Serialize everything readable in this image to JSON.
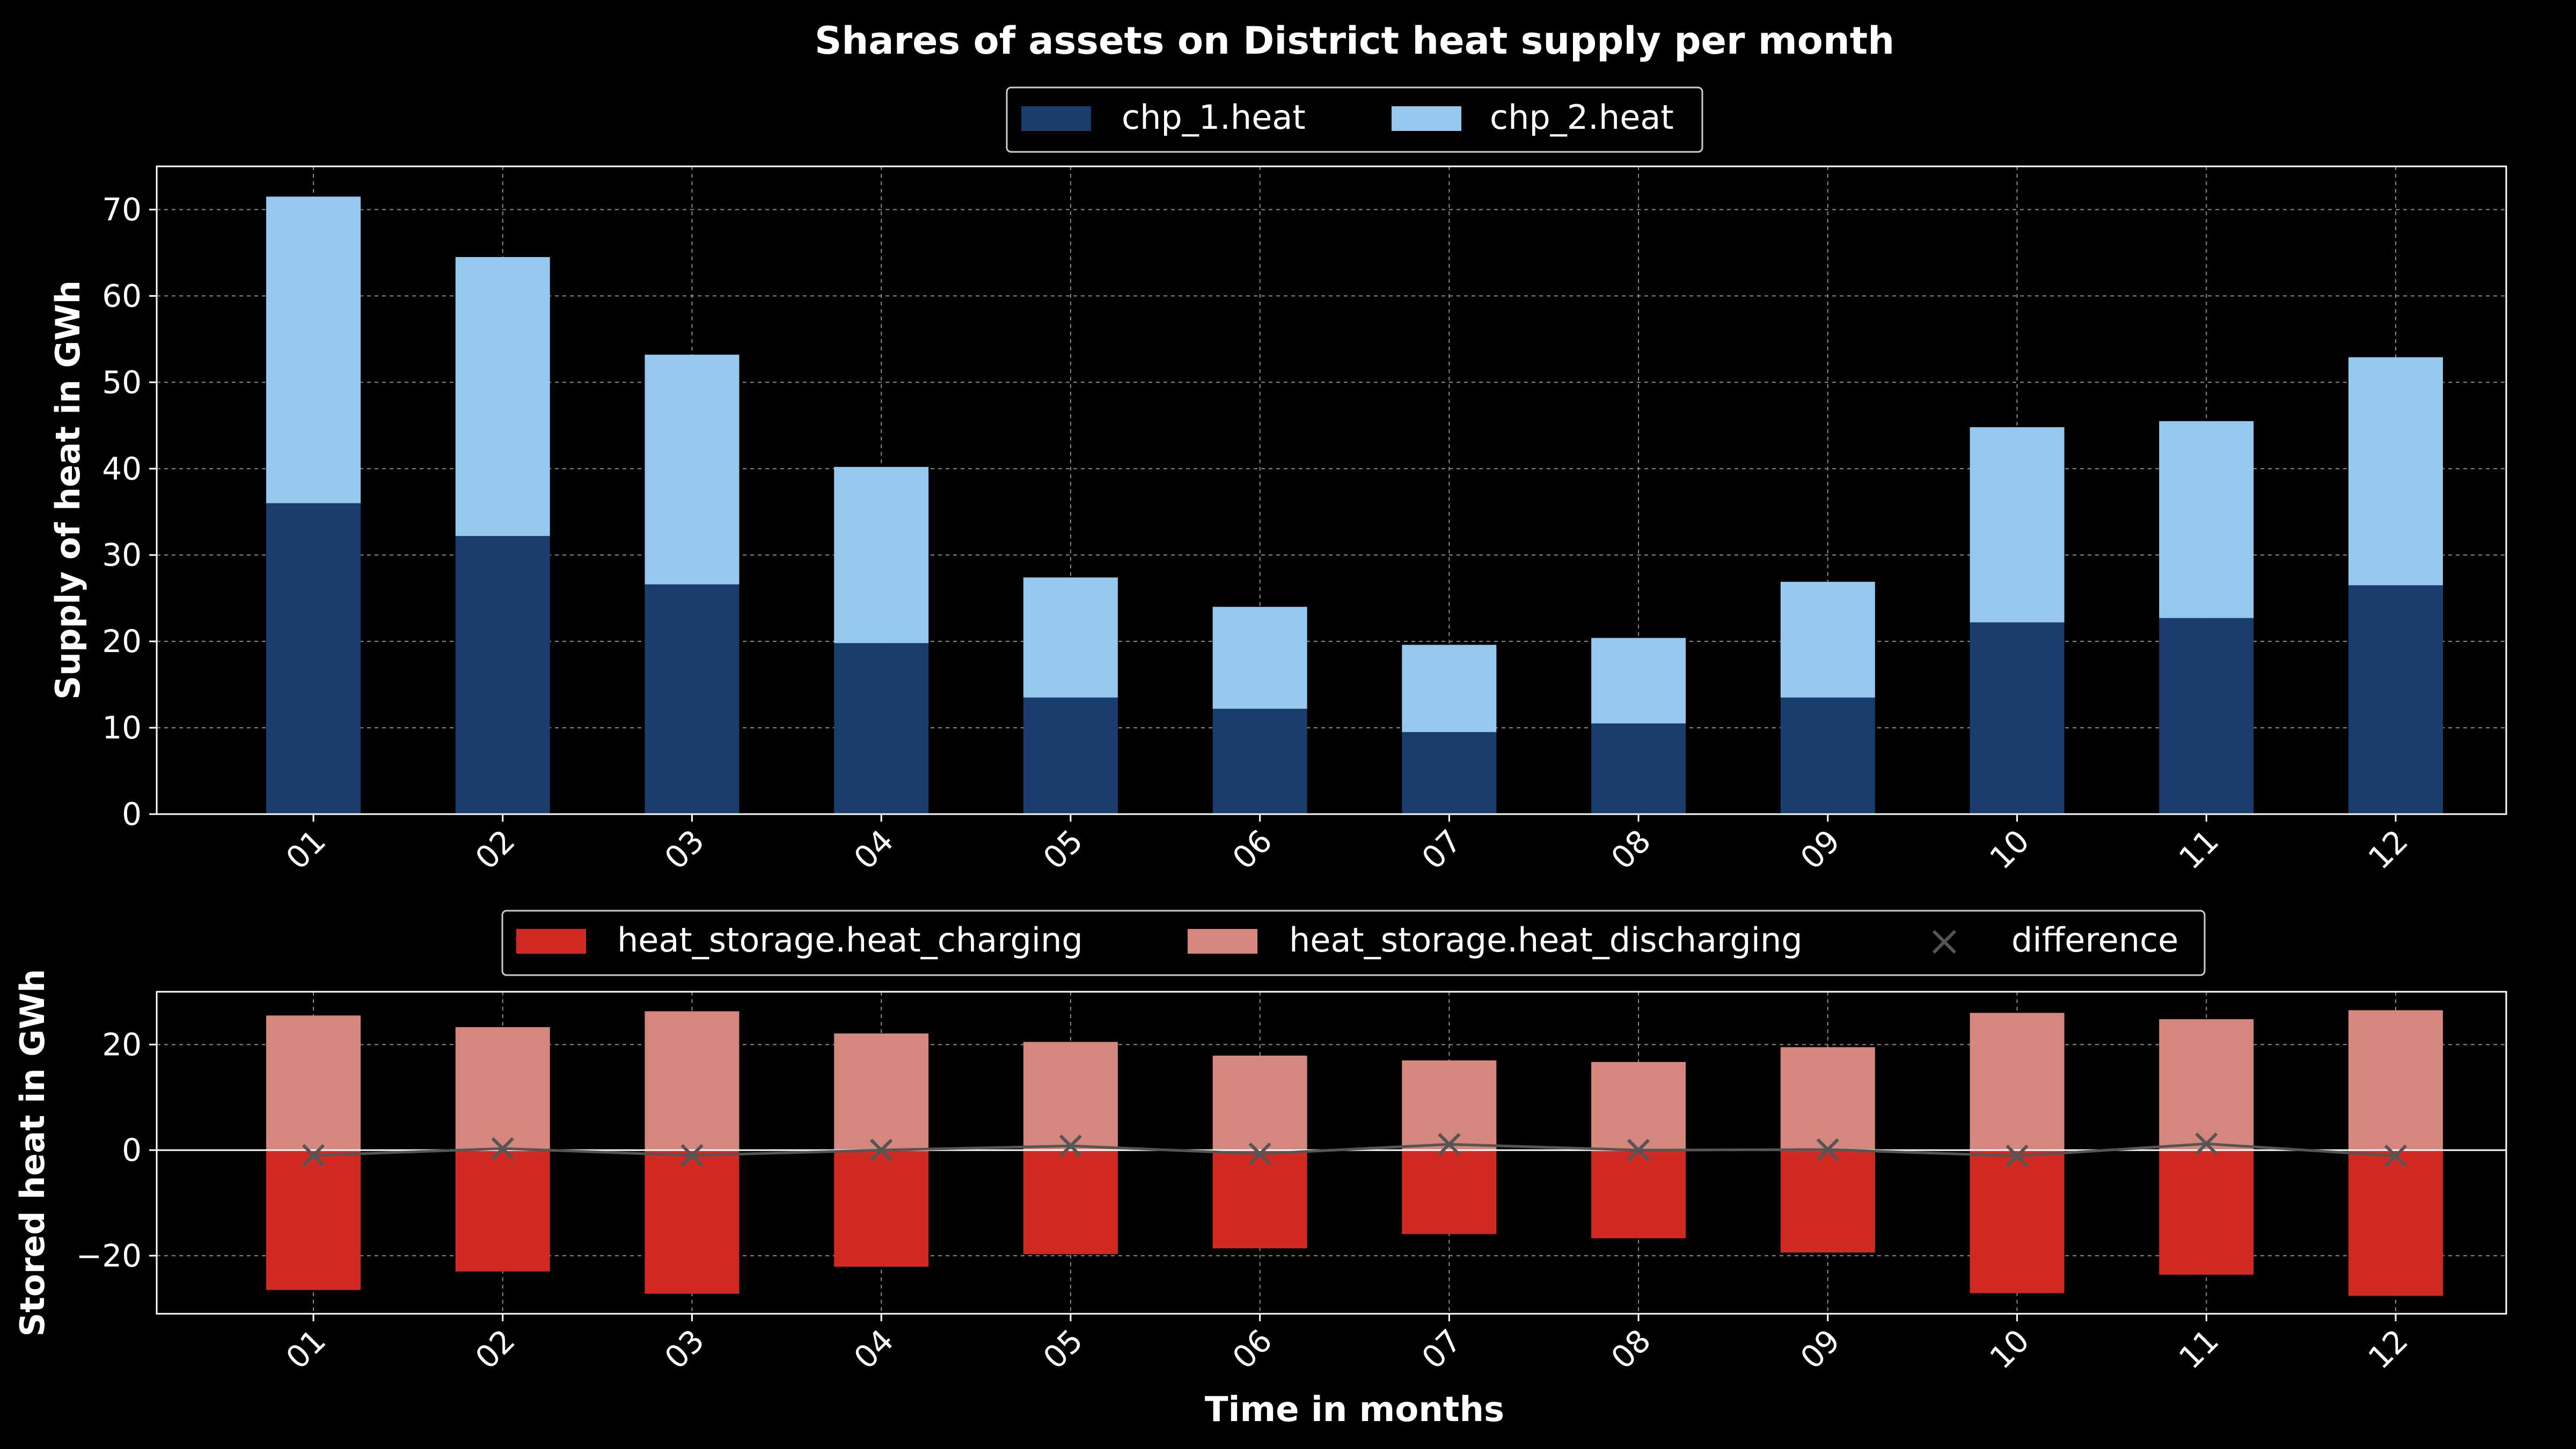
{
  "colors": {
    "background": "#000000",
    "chp_1": "#1a3d6e",
    "chp_2": "#96c8ee",
    "charging": "#d02a23",
    "discharging": "#d5877e",
    "difference": "#555555",
    "grid": "#8a8a8a",
    "axis": "#ffffff"
  },
  "chart_data": [
    {
      "type": "bar",
      "stacked": true,
      "title": "Shares of assets on District heat supply per month",
      "xlabel": "",
      "ylabel": "Supply of heat in GWh",
      "categories": [
        "01",
        "02",
        "03",
        "04",
        "05",
        "06",
        "07",
        "08",
        "09",
        "10",
        "11",
        "12"
      ],
      "ylim": [
        0,
        75
      ],
      "yticks": [
        0,
        10,
        20,
        30,
        40,
        50,
        60,
        70
      ],
      "grid": true,
      "legend_position": "top-center",
      "series": [
        {
          "name": "chp_1.heat",
          "color": "#1a3d6e",
          "values": [
            36.0,
            32.2,
            26.6,
            19.8,
            13.5,
            12.2,
            9.5,
            10.5,
            13.5,
            22.2,
            22.7,
            26.5
          ]
        },
        {
          "name": "chp_2.heat",
          "color": "#96c8ee",
          "values": [
            35.5,
            32.3,
            26.6,
            20.4,
            13.9,
            11.8,
            10.1,
            9.9,
            13.4,
            22.6,
            22.8,
            26.4
          ]
        }
      ]
    },
    {
      "type": "bar",
      "stacked": false,
      "title": "",
      "xlabel": "Time in months",
      "ylabel": "Stored heat in GWh",
      "categories": [
        "01",
        "02",
        "03",
        "04",
        "05",
        "06",
        "07",
        "08",
        "09",
        "10",
        "11",
        "12"
      ],
      "ylim": [
        -31,
        30
      ],
      "yticks": [
        -20,
        0,
        20
      ],
      "grid": true,
      "legend_position": "top-center",
      "series": [
        {
          "name": "heat_storage.heat_charging",
          "color": "#d02a23",
          "kind": "bar",
          "values": [
            -26.5,
            -23.0,
            -27.2,
            -22.1,
            -19.7,
            -18.6,
            -15.9,
            -16.7,
            -19.4,
            -27.1,
            -23.6,
            -27.6
          ]
        },
        {
          "name": "heat_storage.heat_discharging",
          "color": "#d5877e",
          "kind": "bar",
          "values": [
            25.5,
            23.3,
            26.3,
            22.1,
            20.5,
            17.9,
            17.0,
            16.7,
            19.5,
            26.0,
            24.8,
            26.5
          ]
        },
        {
          "name": "difference",
          "color": "#555555",
          "kind": "line-marker-x",
          "values": [
            -1.0,
            0.3,
            -1.0,
            0.0,
            0.8,
            -0.7,
            1.1,
            0.0,
            0.1,
            -1.1,
            1.2,
            -1.1
          ]
        }
      ]
    }
  ]
}
